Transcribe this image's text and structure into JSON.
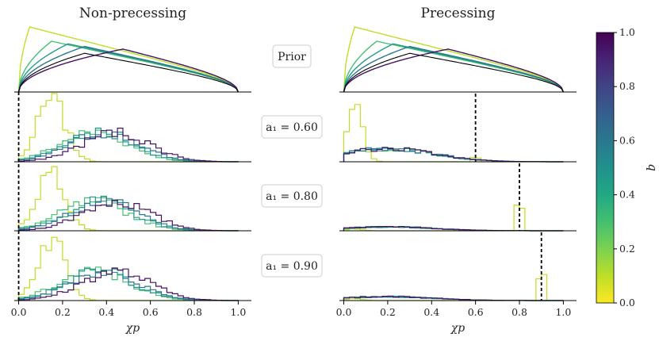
{
  "chart_data": {
    "type": "histogram-grid",
    "columns": [
      {
        "title": "Non-precessing"
      },
      {
        "title": "Precessing"
      }
    ],
    "rows": [
      {
        "label": "Prior",
        "a1": null
      },
      {
        "label": "$a_1 = 0.60$",
        "text": "a₁ = 0.60",
        "a1": 0.6
      },
      {
        "label": "$a_1 = 0.80$",
        "text": "a₁ = 0.80",
        "a1": 0.8
      },
      {
        "label": "$a_1 = 0.90$",
        "text": "a₁ = 0.90",
        "a1": 0.9
      }
    ],
    "xlabel": "χp",
    "xlim": [
      -0.02,
      1.06
    ],
    "xticks": [
      "0.0",
      "0.2",
      "0.4",
      "0.6",
      "0.8",
      "1.0"
    ],
    "xtick_values": [
      0.0,
      0.2,
      0.4,
      0.6,
      0.8,
      1.0
    ],
    "mass_ratios_q": [
      0.1,
      0.3,
      0.45,
      0.6,
      0.95
    ],
    "prior_peaks_x": [
      0.05,
      0.23,
      0.36,
      0.5,
      0.5
    ],
    "reference_line": {
      "style": "dashed",
      "color": "#000000",
      "non_precessing_x": 0.0,
      "precessing_x_by_row": [
        0.6,
        0.8,
        0.9
      ]
    },
    "colorbar": {
      "label": "q",
      "range": [
        0.0,
        1.0
      ],
      "ticks": [
        "0.0",
        "0.2",
        "0.4",
        "0.6",
        "0.8",
        "1.0"
      ],
      "colormap": "viridis"
    }
  }
}
